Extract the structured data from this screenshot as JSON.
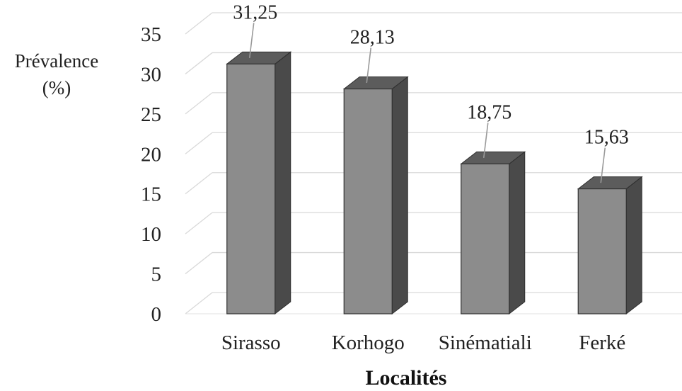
{
  "chart_data": {
    "type": "bar",
    "style": "3d-column",
    "categories": [
      "Sirasso",
      "Korhogo",
      "Sinématiali",
      "Ferké"
    ],
    "values": [
      31.25,
      28.13,
      18.75,
      15.63
    ],
    "data_labels": [
      "31,25",
      "28,13",
      "18,75",
      "15,63"
    ],
    "ylabel_lines": [
      "Prévalence",
      "(%)"
    ],
    "xlabel": "Localités",
    "ylim": [
      0,
      35
    ],
    "yticks": [
      "0",
      "5",
      "10",
      "15",
      "20",
      "25",
      "30",
      "35"
    ],
    "grid": true,
    "legend": "none"
  }
}
